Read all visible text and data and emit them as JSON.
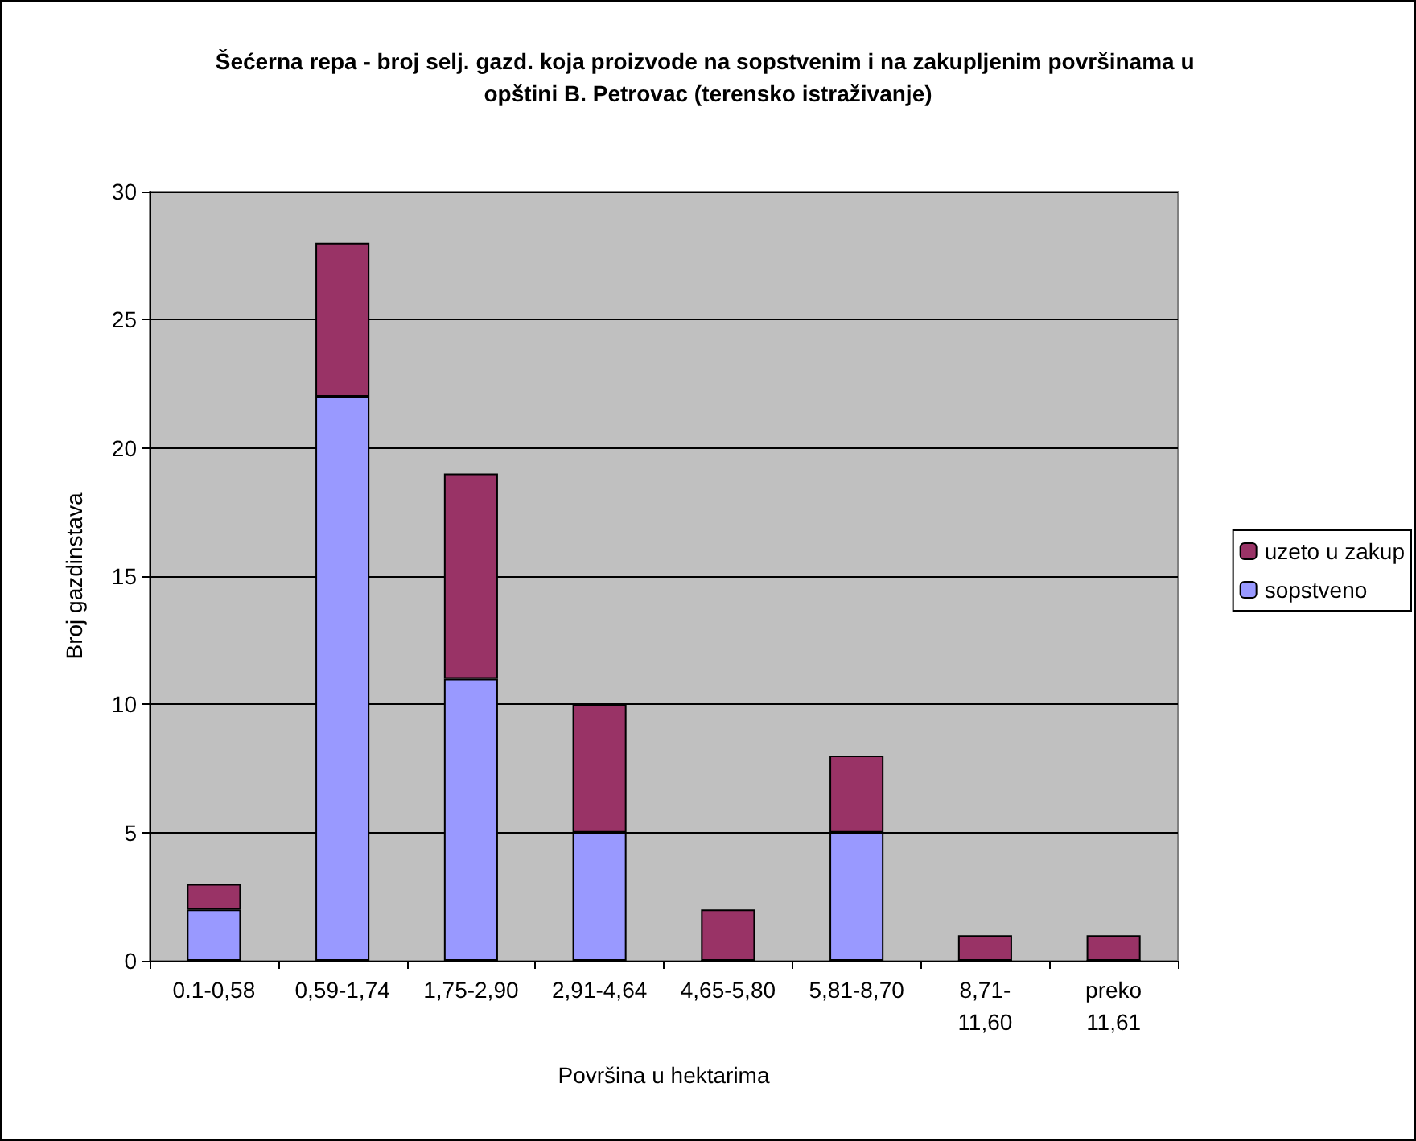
{
  "chart_data": {
    "type": "bar",
    "title": "Šećerna repa - broj selj. gazd. koja proizvode na sopstvenim i na zakupljenim površinama u opštini B. Petrovac (terensko istraživanje)",
    "xlabel": "Površina u hektarima",
    "ylabel": "Broj gazdinstava",
    "categories": [
      "0.1-0,58",
      "0,59-1,74",
      "1,75-2,90",
      "2,91-4,64",
      "4,65-5,80",
      "5,81-8,70",
      "8,71- 11,60",
      "preko 11,61"
    ],
    "series": [
      {
        "name": "sopstveno",
        "color": "#9999ff",
        "values": [
          2,
          22,
          11,
          5,
          0,
          5,
          0,
          0
        ]
      },
      {
        "name": "uzeto u zakup",
        "color": "#993366",
        "values": [
          1,
          6,
          8,
          5,
          2,
          3,
          1,
          1
        ]
      }
    ],
    "stacked": true,
    "ylim": [
      0,
      30
    ],
    "yticks": [
      0,
      5,
      10,
      15,
      20,
      25,
      30
    ],
    "grid": "y",
    "legend": "right"
  }
}
